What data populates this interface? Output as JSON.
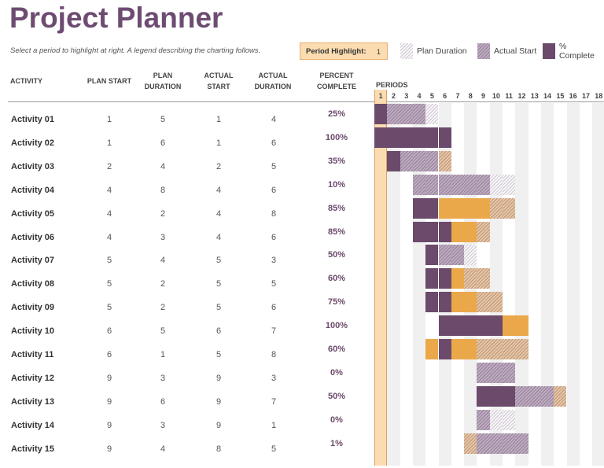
{
  "title": "Project Planner",
  "subtitle": "Select a period to highlight at right.  A legend describing the charting follows.",
  "period_highlight": {
    "label": "Period Highlight:",
    "value": "1"
  },
  "legend": [
    {
      "label": "Plan Duration",
      "style": "plan"
    },
    {
      "label": "Actual Start",
      "style": "act"
    },
    {
      "label": "% Complete",
      "style": "comp"
    }
  ],
  "headers": {
    "activity": "ACTIVITY",
    "plan_start": "PLAN START",
    "plan_duration": "PLAN\nDURATION",
    "actual_start": "ACTUAL\nSTART",
    "actual_duration": "ACTUAL\nDURATION",
    "percent_complete": "PERCENT\nCOMPLETE",
    "periods": "PERIODS"
  },
  "periods": [
    "1",
    "2",
    "3",
    "4",
    "5",
    "6",
    "7",
    "8",
    "9",
    "10",
    "11",
    "12",
    "13",
    "14",
    "15",
    "16",
    "17",
    "18"
  ],
  "colors": {
    "title": "#6e4c72",
    "complete": "#6b4a6b",
    "beyond": "#eba84a",
    "highlight": "#fbdcb0"
  },
  "activities": [
    {
      "name": "Activity 01",
      "plan_start": 1,
      "plan_duration": 5,
      "actual_start": 1,
      "actual_duration": 4,
      "percent": "25%"
    },
    {
      "name": "Activity 02",
      "plan_start": 1,
      "plan_duration": 6,
      "actual_start": 1,
      "actual_duration": 6,
      "percent": "100%"
    },
    {
      "name": "Activity 03",
      "plan_start": 2,
      "plan_duration": 4,
      "actual_start": 2,
      "actual_duration": 5,
      "percent": "35%"
    },
    {
      "name": "Activity 04",
      "plan_start": 4,
      "plan_duration": 8,
      "actual_start": 4,
      "actual_duration": 6,
      "percent": "10%"
    },
    {
      "name": "Activity 05",
      "plan_start": 4,
      "plan_duration": 2,
      "actual_start": 4,
      "actual_duration": 8,
      "percent": "85%"
    },
    {
      "name": "Activity 06",
      "plan_start": 4,
      "plan_duration": 3,
      "actual_start": 4,
      "actual_duration": 6,
      "percent": "85%"
    },
    {
      "name": "Activity 07",
      "plan_start": 5,
      "plan_duration": 4,
      "actual_start": 5,
      "actual_duration": 3,
      "percent": "50%"
    },
    {
      "name": "Activity 08",
      "plan_start": 5,
      "plan_duration": 2,
      "actual_start": 5,
      "actual_duration": 5,
      "percent": "60%"
    },
    {
      "name": "Activity 09",
      "plan_start": 5,
      "plan_duration": 2,
      "actual_start": 5,
      "actual_duration": 6,
      "percent": "75%"
    },
    {
      "name": "Activity 10",
      "plan_start": 6,
      "plan_duration": 5,
      "actual_start": 6,
      "actual_duration": 7,
      "percent": "100%"
    },
    {
      "name": "Activity 11",
      "plan_start": 6,
      "plan_duration": 1,
      "actual_start": 5,
      "actual_duration": 8,
      "percent": "60%"
    },
    {
      "name": "Activity 12",
      "plan_start": 9,
      "plan_duration": 3,
      "actual_start": 9,
      "actual_duration": 3,
      "percent": "0%"
    },
    {
      "name": "Activity 13",
      "plan_start": 9,
      "plan_duration": 6,
      "actual_start": 9,
      "actual_duration": 7,
      "percent": "50%"
    },
    {
      "name": "Activity 14",
      "plan_start": 9,
      "plan_duration": 3,
      "actual_start": 9,
      "actual_duration": 1,
      "percent": "0%"
    },
    {
      "name": "Activity 15",
      "plan_start": 9,
      "plan_duration": 4,
      "actual_start": 8,
      "actual_duration": 5,
      "percent": "1%"
    }
  ]
}
